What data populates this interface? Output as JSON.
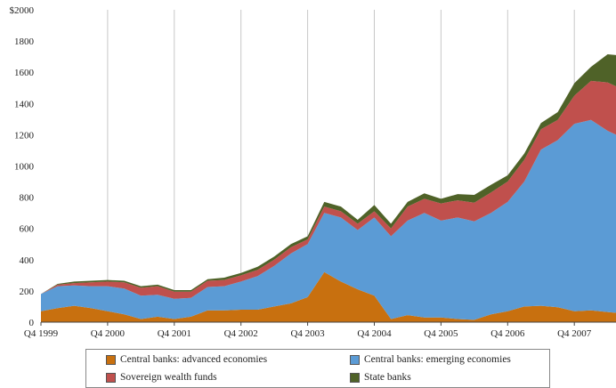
{
  "chart_data": {
    "type": "area",
    "stacked": true,
    "title": "",
    "xlabel": "",
    "ylabel": "",
    "ylim": [
      0,
      2000
    ],
    "yticks": [
      0,
      200,
      400,
      600,
      800,
      1000,
      1200,
      1400,
      1600,
      1800,
      2000
    ],
    "ytick_labels": [
      "0",
      "200",
      "400",
      "600",
      "800",
      "1000",
      "1200",
      "1400",
      "1600",
      "1800",
      "$2000"
    ],
    "x_start_index": 0,
    "x_end_index": 34.5,
    "xtick_labels": [
      "Q4 1999",
      "Q4 2000",
      "Q4 2001",
      "Q4 2002",
      "Q4 2003",
      "Q4 2004",
      "Q4 2005",
      "Q4 2006",
      "Q4 2007"
    ],
    "xtick_indices": [
      0,
      4,
      8,
      12,
      16,
      20,
      24,
      28,
      32
    ],
    "grid": "vertical",
    "legend_position": "bottom",
    "x": [
      0,
      1,
      2,
      3,
      4,
      5,
      6,
      7,
      8,
      9,
      10,
      11,
      12,
      13,
      14,
      15,
      16,
      17,
      18,
      19,
      20,
      21,
      22,
      23,
      24,
      25,
      26,
      27,
      28,
      29,
      30,
      31,
      32,
      33,
      34,
      34.5
    ],
    "series": [
      {
        "name": "Central banks: advanced economies",
        "color": "#c8700f",
        "values": [
          70,
          90,
          105,
          90,
          70,
          50,
          20,
          35,
          20,
          35,
          75,
          75,
          80,
          80,
          100,
          120,
          160,
          320,
          260,
          210,
          170,
          20,
          45,
          30,
          30,
          20,
          15,
          50,
          70,
          100,
          105,
          95,
          70,
          75,
          65,
          60
        ]
      },
      {
        "name": "Central banks: emerging economies",
        "color": "#5b9bd5",
        "values": [
          110,
          140,
          130,
          140,
          160,
          165,
          150,
          140,
          130,
          120,
          150,
          155,
          180,
          215,
          260,
          320,
          340,
          380,
          410,
          380,
          500,
          530,
          605,
          670,
          620,
          650,
          630,
          650,
          700,
          800,
          1000,
          1070,
          1200,
          1220,
          1160,
          1140
        ]
      },
      {
        "name": "Sovereign wealth funds",
        "color": "#c0504d",
        "values": [
          0,
          10,
          15,
          25,
          30,
          40,
          50,
          55,
          45,
          40,
          40,
          40,
          40,
          40,
          40,
          40,
          30,
          40,
          40,
          40,
          40,
          50,
          90,
          90,
          110,
          110,
          120,
          130,
          130,
          140,
          130,
          130,
          180,
          250,
          310,
          310
        ]
      },
      {
        "name": "State banks",
        "color": "#4f6228",
        "values": [
          0,
          5,
          10,
          10,
          10,
          10,
          10,
          10,
          10,
          10,
          10,
          15,
          15,
          20,
          20,
          20,
          20,
          30,
          30,
          25,
          40,
          30,
          30,
          35,
          30,
          40,
          50,
          50,
          40,
          40,
          40,
          50,
          80,
          90,
          180,
          200
        ]
      }
    ]
  }
}
